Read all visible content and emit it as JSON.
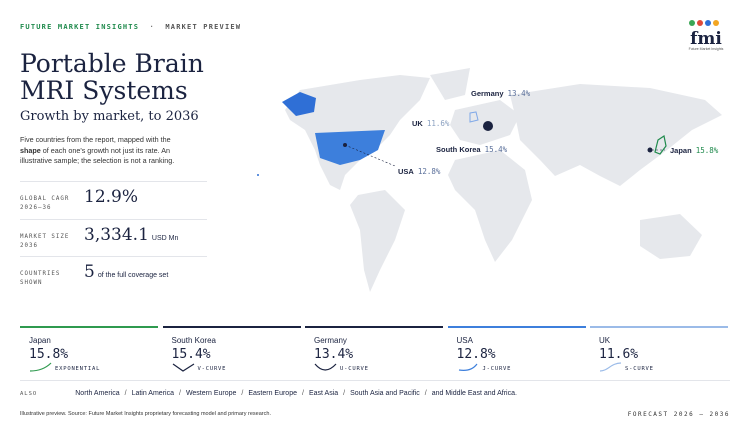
{
  "header": {
    "brand": "FUTURE MARKET INSIGHTS",
    "separator": "·",
    "section": "MARKET PREVIEW",
    "logo": "fmi",
    "logo_sub": "Future Market Insights"
  },
  "title": [
    "Portable Brain",
    "MRI Systems"
  ],
  "subtitle": "Growth by market, to 2036",
  "description": [
    "Five countries from the report, mapped with the ",
    "shape",
    " of each one's growth not just its rate. An illustrative sample; the selection is not a ranking."
  ],
  "stats": [
    {
      "label": [
        "GLOBAL CAGR",
        "2026–36"
      ],
      "value": "12.9%"
    },
    {
      "label": [
        "MARKET SIZE",
        "2036"
      ],
      "value": "3,334.1",
      "unit": "USD Mn"
    },
    {
      "label": [
        "COUNTRIES",
        "SHOWN"
      ],
      "value": "5",
      "unit": "of the full coverage set"
    }
  ],
  "map_labels": [
    {
      "country": "Germany",
      "value": "13.4%"
    },
    {
      "country": "UK",
      "value": "11.6%"
    },
    {
      "country": "South Korea",
      "value": "15.4%"
    },
    {
      "country": "USA",
      "value": "12.8%"
    },
    {
      "country": "Japan",
      "value": "15.8%"
    }
  ],
  "cards": [
    {
      "country": "Japan",
      "value": "15.8%",
      "curve": "EXPONENTIAL"
    },
    {
      "country": "South Korea",
      "value": "15.4%",
      "curve": "V-CURVE"
    },
    {
      "country": "Germany",
      "value": "13.4%",
      "curve": "U-CURVE"
    },
    {
      "country": "USA",
      "value": "12.8%",
      "curve": "J-CURVE"
    },
    {
      "country": "UK",
      "value": "11.6%",
      "curve": "S-CURVE"
    }
  ],
  "also": {
    "label": "ALSO",
    "items": [
      "North America",
      "Latin America",
      "Western Europe",
      "Eastern Europe",
      "East Asia",
      "South Asia and Pacific",
      "and Middle East and Africa."
    ],
    "separator": "/"
  },
  "footer": {
    "note": "Illustrative preview. Source: Future Market Insights proprietary forecasting model and primary research.",
    "forecast": "FORECAST 2026 – 2036"
  }
}
